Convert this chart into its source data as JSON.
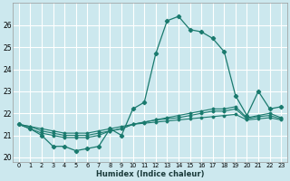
{
  "xlabel": "Humidex (Indice chaleur)",
  "ylabel": "",
  "background_color": "#cce8ee",
  "grid_color": "#ffffff",
  "line_color": "#1a7a6e",
  "x": [
    0,
    1,
    2,
    3,
    4,
    5,
    6,
    7,
    8,
    9,
    10,
    11,
    12,
    13,
    14,
    15,
    16,
    17,
    18,
    19,
    20,
    21,
    22,
    23
  ],
  "line1": [
    21.5,
    21.3,
    21.0,
    20.5,
    20.5,
    20.3,
    20.4,
    20.5,
    21.3,
    21.0,
    22.2,
    22.5,
    24.7,
    26.2,
    26.4,
    25.8,
    25.7,
    25.4,
    24.8,
    22.8,
    21.9,
    23.0,
    22.2,
    22.3
  ],
  "line2": [
    21.5,
    21.3,
    21.1,
    21.0,
    20.9,
    20.9,
    20.9,
    21.0,
    21.2,
    21.3,
    21.5,
    21.6,
    21.7,
    21.8,
    21.9,
    22.0,
    22.1,
    22.2,
    22.2,
    22.3,
    21.8,
    21.9,
    22.0,
    21.8
  ],
  "line3": [
    21.5,
    21.4,
    21.2,
    21.1,
    21.0,
    21.0,
    21.0,
    21.1,
    21.2,
    21.3,
    21.5,
    21.6,
    21.7,
    21.75,
    21.8,
    21.9,
    22.0,
    22.1,
    22.1,
    22.2,
    21.75,
    21.85,
    21.9,
    21.75
  ],
  "line4": [
    21.5,
    21.4,
    21.3,
    21.2,
    21.1,
    21.1,
    21.1,
    21.2,
    21.3,
    21.4,
    21.5,
    21.55,
    21.6,
    21.65,
    21.7,
    21.75,
    21.8,
    21.85,
    21.9,
    21.95,
    21.7,
    21.75,
    21.8,
    21.7
  ],
  "ylim": [
    19.8,
    27.0
  ],
  "xlim": [
    -0.5,
    23.5
  ],
  "yticks": [
    20,
    21,
    22,
    23,
    24,
    25,
    26
  ],
  "xticks": [
    0,
    1,
    2,
    3,
    4,
    5,
    6,
    7,
    8,
    9,
    10,
    11,
    12,
    13,
    14,
    15,
    16,
    17,
    18,
    19,
    20,
    21,
    22,
    23
  ]
}
